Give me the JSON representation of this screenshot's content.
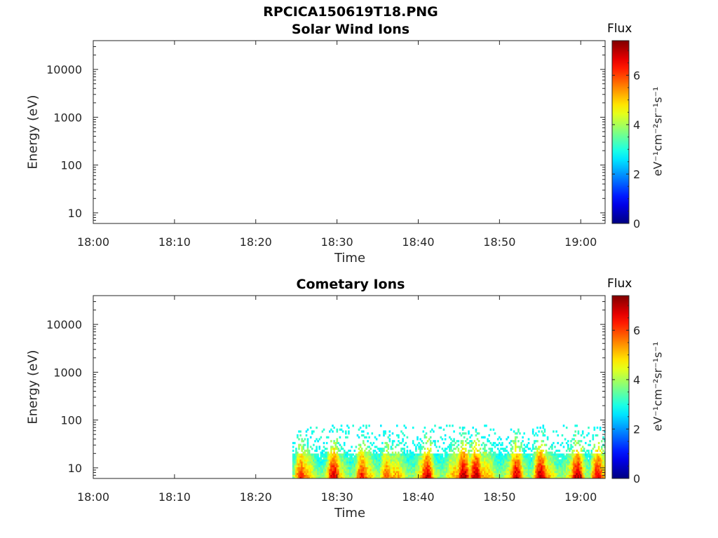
{
  "figure_title": "RPCICA150619T18.PNG",
  "chart_data": [
    {
      "type": "heatmap",
      "title": "Solar Wind Ions",
      "xlabel": "Time",
      "ylabel": "Energy (eV)",
      "xlim": [
        "18:00",
        "19:03"
      ],
      "x_ticks": [
        "18:00",
        "18:10",
        "18:20",
        "18:30",
        "18:40",
        "18:50",
        "19:00"
      ],
      "ylim": [
        6,
        40000
      ],
      "y_scale": "log",
      "y_ticks": [
        {
          "value": 10,
          "label": "10"
        },
        {
          "value": 100,
          "label": "100"
        },
        {
          "value": 1000,
          "label": "1000"
        },
        {
          "value": 10000,
          "label": "10000"
        }
      ],
      "colorbar": {
        "title": "Flux",
        "label": "eV⁻¹cm⁻²sr⁻¹s⁻¹",
        "range": [
          0,
          7.4
        ],
        "ticks": [
          "0",
          "2",
          "4",
          "6"
        ],
        "colormap": "jet"
      },
      "data": []
    },
    {
      "type": "heatmap",
      "title": "Cometary Ions",
      "xlabel": "Time",
      "ylabel": "Energy (eV)",
      "xlim": [
        "18:00",
        "19:03"
      ],
      "x_ticks": [
        "18:00",
        "18:10",
        "18:20",
        "18:30",
        "18:40",
        "18:50",
        "19:00"
      ],
      "ylim": [
        6,
        40000
      ],
      "y_scale": "log",
      "y_ticks": [
        {
          "value": 10,
          "label": "10"
        },
        {
          "value": 100,
          "label": "100"
        },
        {
          "value": 1000,
          "label": "1000"
        },
        {
          "value": 10000,
          "label": "10000"
        }
      ],
      "colorbar": {
        "title": "Flux",
        "label": "eV⁻¹cm⁻²sr⁻¹s⁻¹",
        "range": [
          0,
          7.4
        ],
        "ticks": [
          "0",
          "2",
          "4",
          "6"
        ],
        "colormap": "jet"
      },
      "data_extent": {
        "time_start": "18:24.5",
        "time_end": "19:03",
        "energy_min": 6,
        "energy_max": 80
      },
      "intensity_peaks": [
        {
          "time": "18:25.5",
          "flux": 6.3
        },
        {
          "time": "18:29.5",
          "flux": 7.0
        },
        {
          "time": "18:33",
          "flux": 6.5
        },
        {
          "time": "18:36",
          "flux": 6.0
        },
        {
          "time": "18:41",
          "flux": 7.0
        },
        {
          "time": "18:45.5",
          "flux": 7.2
        },
        {
          "time": "18:47",
          "flux": 7.2
        },
        {
          "time": "18:52",
          "flux": 7.0
        },
        {
          "time": "18:55",
          "flux": 7.2
        },
        {
          "time": "18:59.5",
          "flux": 7.1
        },
        {
          "time": "19:02",
          "flux": 6.8
        }
      ]
    }
  ]
}
